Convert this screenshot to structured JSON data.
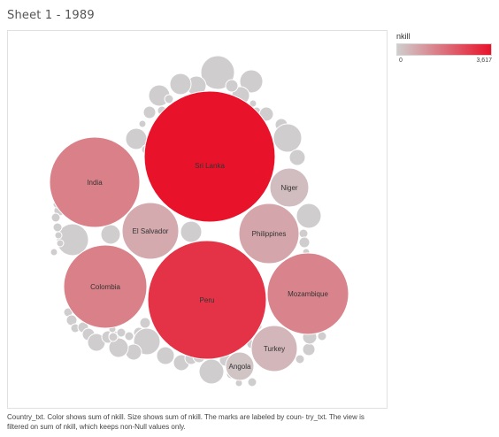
{
  "sheet_title": "Sheet 1 - 1989",
  "legend": {
    "title": "nkill",
    "min_label": "0",
    "max_label": "3,617",
    "color_low": "#cfcdcd",
    "color_high": "#e8132a"
  },
  "caption": "Country_txt.  Color shows sum of nkill.  Size shows sum of nkill.  The marks are labeled by coun- try_txt. The view is filtered on sum of nkill, which keeps non-Null values only.",
  "chart_data": {
    "type": "bubble",
    "measure": "nkill",
    "color_range": [
      0,
      3617
    ],
    "labeled": [
      {
        "country": "Sri Lanka",
        "value": 3617
      },
      {
        "country": "Peru",
        "value": 3000
      },
      {
        "country": "Colombia",
        "value": 1500
      },
      {
        "country": "India",
        "value": 1500
      },
      {
        "country": "Mozambique",
        "value": 1420
      },
      {
        "country": "El Salvador",
        "value": 680
      },
      {
        "country": "Philippines",
        "value": 750
      },
      {
        "country": "Turkey",
        "value": 440
      },
      {
        "country": "Niger",
        "value": 320
      },
      {
        "country": "Angola",
        "value": 170
      }
    ],
    "unlabeled_bubble_count": 70
  }
}
